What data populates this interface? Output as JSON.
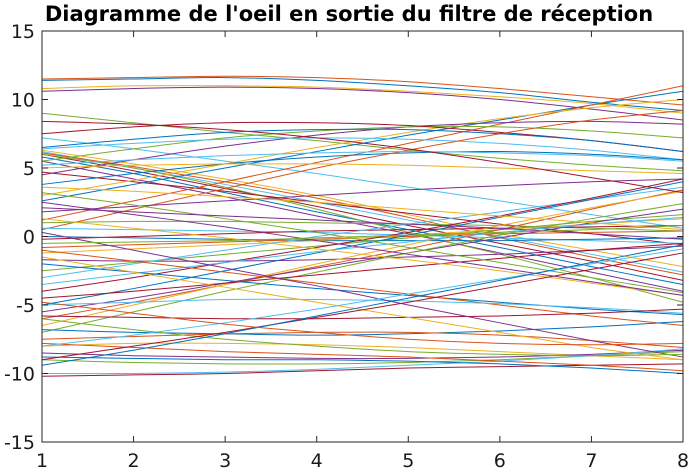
{
  "chart_data": {
    "type": "line",
    "title": "Diagramme de l'oeil en sortie du filtre de réception",
    "xlabel": "",
    "ylabel": "",
    "xlim": [
      1,
      8
    ],
    "ylim": [
      -15,
      15
    ],
    "xticks": [
      "1",
      "2",
      "3",
      "4",
      "5",
      "6",
      "7",
      "8"
    ],
    "yticks": [
      "-15",
      "-10",
      "-5",
      "0",
      "5",
      "10",
      "15"
    ],
    "grid": false,
    "legend": "none",
    "palette": [
      "#0072BD",
      "#D95319",
      "#EDB120",
      "#7E2F8E",
      "#77AC30",
      "#4DBEEE",
      "#A2142F"
    ],
    "x": [
      1,
      2,
      3,
      4,
      5,
      6,
      7,
      8
    ],
    "series": [
      {
        "values": [
          11.4,
          11.5,
          11.6,
          11.4,
          11.0,
          10.5,
          9.8,
          9.2
        ]
      },
      {
        "values": [
          11.5,
          11.6,
          11.7,
          11.6,
          11.3,
          10.8,
          10.2,
          9.6
        ]
      },
      {
        "values": [
          10.8,
          11.0,
          11.0,
          10.9,
          10.6,
          10.2,
          9.7,
          9.0
        ]
      },
      {
        "values": [
          10.6,
          10.8,
          10.9,
          10.8,
          10.5,
          10.0,
          9.3,
          8.5
        ]
      },
      {
        "values": [
          9.0,
          8.3,
          7.6,
          7.0,
          6.3,
          5.7,
          5.2,
          4.8
        ]
      },
      {
        "values": [
          6.2,
          5.0,
          3.8,
          2.5,
          1.2,
          0.0,
          -1.3,
          -2.6
        ]
      },
      {
        "values": [
          6.0,
          4.8,
          3.5,
          2.2,
          0.8,
          -0.5,
          -1.8,
          -3.2
        ]
      },
      {
        "values": [
          5.8,
          4.6,
          3.2,
          1.8,
          0.5,
          -0.8,
          -2.2,
          -3.5
        ]
      },
      {
        "values": [
          6.1,
          5.1,
          4.0,
          2.8,
          1.4,
          -0.1,
          -1.5,
          -2.8
        ]
      },
      {
        "values": [
          6.3,
          5.3,
          4.2,
          3.0,
          1.6,
          0.2,
          -1.0,
          -2.2
        ]
      },
      {
        "values": [
          5.5,
          4.2,
          2.9,
          1.5,
          0.2,
          -1.2,
          -2.6,
          -4.0
        ]
      },
      {
        "values": [
          6.0,
          5.0,
          3.6,
          2.0,
          0.3,
          -1.3,
          -3.0,
          -4.8
        ]
      },
      {
        "values": [
          7.2,
          6.4,
          5.5,
          4.6,
          3.6,
          2.6,
          1.6,
          0.6
        ]
      },
      {
        "values": [
          4.7,
          4.0,
          3.3,
          2.5,
          1.7,
          0.9,
          0.2,
          -0.6
        ]
      },
      {
        "values": [
          2.6,
          3.8,
          5.0,
          6.2,
          7.4,
          8.5,
          9.6,
          10.6
        ]
      },
      {
        "values": [
          1.2,
          2.6,
          4.0,
          5.4,
          6.8,
          8.2,
          9.6,
          11.0
        ]
      },
      {
        "values": [
          3.0,
          4.1,
          5.3,
          6.5,
          7.6,
          8.6,
          9.4,
          10.0
        ]
      },
      {
        "values": [
          4.5,
          5.6,
          6.6,
          7.4,
          8.0,
          8.3,
          8.4,
          8.2
        ]
      },
      {
        "values": [
          5.5,
          6.4,
          7.2,
          7.7,
          8.0,
          8.0,
          7.7,
          7.2
        ]
      },
      {
        "values": [
          6.4,
          6.8,
          7.1,
          7.2,
          7.1,
          6.8,
          6.3,
          5.6
        ]
      },
      {
        "values": [
          7.5,
          8.0,
          8.3,
          8.3,
          8.1,
          7.6,
          7.0,
          6.2
        ]
      },
      {
        "values": [
          3.8,
          4.6,
          5.3,
          5.8,
          6.1,
          6.2,
          6.0,
          5.6
        ]
      },
      {
        "values": [
          0.5,
          2.0,
          3.5,
          5.0,
          6.3,
          7.5,
          8.5,
          9.2
        ]
      },
      {
        "values": [
          5.0,
          5.2,
          5.3,
          5.3,
          5.2,
          5.0,
          4.8,
          4.6
        ]
      },
      {
        "values": [
          1.8,
          2.2,
          2.6,
          3.0,
          3.4,
          3.7,
          4.0,
          4.2
        ]
      },
      {
        "values": [
          1.0,
          1.1,
          1.1,
          1.0,
          0.9,
          0.8,
          0.6,
          0.4
        ]
      },
      {
        "values": [
          0.6,
          0.5,
          0.4,
          0.3,
          0.1,
          -0.1,
          -0.3,
          -0.5
        ]
      },
      {
        "values": [
          -0.2,
          0.0,
          0.2,
          0.4,
          0.5,
          0.6,
          0.7,
          0.8
        ]
      },
      {
        "values": [
          0.0,
          -0.1,
          -0.2,
          -0.3,
          -0.3,
          -0.3,
          -0.2,
          -0.1
        ]
      },
      {
        "values": [
          -0.8,
          -0.6,
          -0.4,
          -0.2,
          0.0,
          0.2,
          0.3,
          0.4
        ]
      },
      {
        "values": [
          -1.2,
          -0.9,
          -0.6,
          -0.3,
          0.1,
          0.5,
          0.9,
          1.3
        ]
      },
      {
        "values": [
          -1.7,
          -1.8,
          -1.8,
          -1.7,
          -1.5,
          -1.3,
          -1.0,
          -0.7
        ]
      },
      {
        "values": [
          -2.5,
          -1.9,
          -1.3,
          -0.7,
          -0.1,
          0.5,
          1.1,
          1.6
        ]
      },
      {
        "values": [
          -3.0,
          -2.0,
          -1.0,
          0.0,
          0.9,
          1.8,
          2.7,
          3.6
        ]
      },
      {
        "values": [
          -4.0,
          -3.0,
          -1.9,
          -0.8,
          0.3,
          1.5,
          2.8,
          4.2
        ]
      },
      {
        "values": [
          -5.0,
          -3.8,
          -2.5,
          -1.2,
          0.1,
          1.4,
          2.7,
          4.0
        ]
      },
      {
        "values": [
          -6.0,
          -4.8,
          -3.5,
          -2.2,
          -0.9,
          0.5,
          2.0,
          3.4
        ]
      },
      {
        "values": [
          -6.5,
          -5.0,
          -3.5,
          -2.0,
          -0.6,
          0.8,
          2.1,
          3.3
        ]
      },
      {
        "values": [
          -5.5,
          -4.5,
          -3.4,
          -2.3,
          -1.2,
          -0.1,
          1.0,
          2.0
        ]
      },
      {
        "values": [
          -7.0,
          -5.5,
          -4.0,
          -2.6,
          -1.2,
          0.1,
          1.3,
          2.4
        ]
      },
      {
        "values": [
          -3.5,
          -2.7,
          -1.9,
          -1.1,
          -0.4,
          0.3,
          0.9,
          1.4
        ]
      },
      {
        "values": [
          -4.5,
          -4.0,
          -3.4,
          -2.8,
          -2.2,
          -1.6,
          -1.0,
          -0.5
        ]
      },
      {
        "values": [
          -2.0,
          -2.6,
          -3.2,
          -3.8,
          -4.3,
          -4.8,
          -5.3,
          -5.7
        ]
      },
      {
        "values": [
          -1.0,
          -1.8,
          -2.6,
          -3.4,
          -4.2,
          -5.0,
          -5.8,
          -6.5
        ]
      },
      {
        "values": [
          1.3,
          0.6,
          -0.1,
          -0.9,
          -1.7,
          -2.5,
          -3.4,
          -4.3
        ]
      },
      {
        "values": [
          2.5,
          1.6,
          0.7,
          -0.3,
          -1.3,
          -2.3,
          -3.3,
          -4.3
        ]
      },
      {
        "values": [
          3.2,
          2.3,
          1.3,
          0.3,
          -0.8,
          -1.9,
          -3.0,
          -4.1
        ]
      },
      {
        "values": [
          -5.0,
          -4.8,
          -4.6,
          -4.6,
          -4.7,
          -4.9,
          -5.2,
          -5.6
        ]
      },
      {
        "values": [
          -5.8,
          -5.9,
          -6.0,
          -6.0,
          -5.9,
          -5.8,
          -5.6,
          -5.3
        ]
      },
      {
        "values": [
          -6.8,
          -7.0,
          -7.1,
          -7.2,
          -7.1,
          -6.9,
          -6.6,
          -6.2
        ]
      },
      {
        "values": [
          -7.5,
          -7.3,
          -7.1,
          -7.0,
          -7.0,
          -7.2,
          -7.6,
          -8.1
        ]
      },
      {
        "values": [
          -8.0,
          -7.8,
          -7.8,
          -7.9,
          -8.1,
          -8.4,
          -8.7,
          -9.0
        ]
      },
      {
        "values": [
          -8.5,
          -8.7,
          -8.8,
          -8.9,
          -8.9,
          -8.8,
          -8.6,
          -8.3
        ]
      },
      {
        "values": [
          -9.0,
          -9.2,
          -9.3,
          -9.3,
          -9.2,
          -9.0,
          -8.7,
          -8.4
        ]
      },
      {
        "values": [
          -10.0,
          -10.0,
          -9.9,
          -9.7,
          -9.4,
          -9.1,
          -8.7,
          -8.2
        ]
      },
      {
        "values": [
          -10.2,
          -10.1,
          -10.0,
          -9.8,
          -9.6,
          -9.5,
          -9.4,
          -9.3
        ]
      },
      {
        "values": [
          -8.8,
          -8.9,
          -9.0,
          -9.0,
          -9.1,
          -9.3,
          -9.6,
          -10.0
        ]
      },
      {
        "values": [
          -7.8,
          -8.1,
          -8.4,
          -8.6,
          -8.8,
          -9.1,
          -9.4,
          -9.8
        ]
      },
      {
        "values": [
          -1.5,
          -2.6,
          -3.7,
          -4.8,
          -5.9,
          -7.0,
          -8.1,
          -9.0
        ]
      },
      {
        "values": [
          0.3,
          -1.0,
          -2.3,
          -3.6,
          -5.0,
          -6.3,
          -7.6,
          -8.8
        ]
      },
      {
        "values": [
          -6.0,
          -6.8,
          -7.5,
          -8.0,
          -8.4,
          -8.6,
          -8.7,
          -8.6
        ]
      },
      {
        "values": [
          -8.0,
          -7.2,
          -6.3,
          -5.3,
          -4.2,
          -3.1,
          -2.0,
          -0.9
        ]
      },
      {
        "values": [
          -9.0,
          -8.0,
          -7.0,
          -5.9,
          -4.8,
          -3.6,
          -2.4,
          -1.2
        ]
      },
      {
        "values": [
          -9.4,
          -8.3,
          -7.1,
          -5.8,
          -4.5,
          -3.2,
          -1.9,
          -0.6
        ]
      },
      {
        "values": [
          -4.8,
          -5.6,
          -6.4,
          -7.0,
          -7.5,
          -7.8,
          -7.9,
          -7.8
        ]
      },
      {
        "values": [
          3.6,
          3.3,
          2.9,
          2.5,
          2.0,
          1.5,
          1.0,
          0.5
        ]
      },
      {
        "values": [
          2.1,
          1.8,
          1.5,
          1.2,
          0.9,
          0.6,
          0.2,
          -0.2
        ]
      },
      {
        "values": [
          -0.5,
          -0.4,
          -0.3,
          -0.1,
          0.1,
          0.3,
          0.5,
          0.8
        ]
      },
      {
        "values": [
          5.2,
          5.6,
          5.9,
          6.1,
          6.2,
          6.1,
          5.9,
          5.5
        ]
      },
      {
        "values": [
          8.4,
          8.2,
          7.8,
          7.2,
          6.4,
          5.4,
          4.3,
          3.2
        ]
      },
      {
        "values": [
          6.5,
          7.1,
          7.6,
          7.8,
          7.8,
          7.5,
          7.0,
          6.2
        ]
      }
    ]
  }
}
